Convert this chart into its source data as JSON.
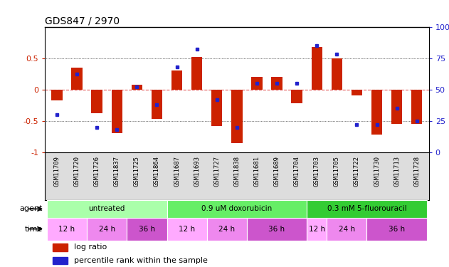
{
  "title": "GDS847 / 2970",
  "samples": [
    "GSM11709",
    "GSM11720",
    "GSM11726",
    "GSM11837",
    "GSM11725",
    "GSM11864",
    "GSM11687",
    "GSM11693",
    "GSM11727",
    "GSM11838",
    "GSM11681",
    "GSM11689",
    "GSM11704",
    "GSM11703",
    "GSM11705",
    "GSM11722",
    "GSM11730",
    "GSM11713",
    "GSM11728"
  ],
  "log_ratio": [
    -0.18,
    0.35,
    -0.38,
    -0.7,
    0.07,
    -0.47,
    0.3,
    0.52,
    -0.58,
    -0.85,
    0.2,
    0.2,
    -0.22,
    0.68,
    0.5,
    -0.1,
    -0.72,
    -0.55,
    -0.55
  ],
  "pct_rank": [
    30,
    62,
    20,
    18,
    52,
    38,
    68,
    82,
    42,
    20,
    55,
    55,
    55,
    85,
    78,
    22,
    22,
    35,
    25
  ],
  "agent_group_data": [
    [
      "untreated",
      0,
      5,
      "#aaffaa"
    ],
    [
      "0.9 uM doxorubicin",
      6,
      12,
      "#66ee66"
    ],
    [
      "0.3 mM 5-fluorouracil",
      13,
      18,
      "#33cc33"
    ]
  ],
  "time_group_data": [
    [
      "12 h",
      0,
      1,
      "#ffaaff"
    ],
    [
      "24 h",
      2,
      3,
      "#ee88ee"
    ],
    [
      "36 h",
      4,
      5,
      "#cc55cc"
    ],
    [
      "12 h",
      6,
      7,
      "#ffaaff"
    ],
    [
      "24 h",
      8,
      9,
      "#ee88ee"
    ],
    [
      "36 h",
      10,
      12,
      "#cc55cc"
    ],
    [
      "12 h",
      13,
      13,
      "#ffaaff"
    ],
    [
      "24 h",
      14,
      15,
      "#ee88ee"
    ],
    [
      "36 h",
      16,
      18,
      "#cc55cc"
    ]
  ],
  "ylim": [
    -1.0,
    1.0
  ],
  "y2lim": [
    0,
    100
  ],
  "bar_color": "#cc2200",
  "dot_color": "#2222cc",
  "axis_color_left": "#cc2200",
  "axis_color_right": "#2222cc",
  "legend_log_ratio": "log ratio",
  "legend_pct": "percentile rank within the sample",
  "yticks_left": [
    -1,
    -0.5,
    0,
    0.5
  ],
  "yticks_right": [
    0,
    25,
    50,
    75,
    100
  ]
}
